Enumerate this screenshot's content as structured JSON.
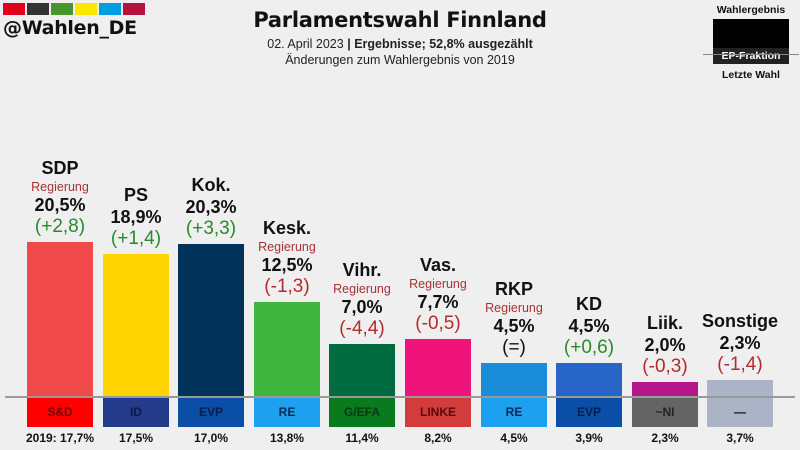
{
  "brand": {
    "handle": "@Wahlen_DE",
    "swatch_colors": [
      "#e2001a",
      "#333333",
      "#46962b",
      "#ffe600",
      "#009ee0",
      "#b5123e"
    ]
  },
  "header": {
    "title": "Parlamentswahl Finnland",
    "date": "02. April 2023",
    "separator": "|",
    "status": "Ergebnisse; 52,8% ausgezählt",
    "subtitle": "Änderungen zum Wahlergebnis von 2019"
  },
  "legend": {
    "top": "Wahlergebnis",
    "middle": "EP-Fraktion",
    "bottom": "Letzte Wahl"
  },
  "chart_data": {
    "type": "bar",
    "title": "Parlamentswahl Finnland",
    "xlabel": "",
    "ylabel": "",
    "ylim": [
      0,
      22
    ],
    "unit": "%",
    "government_label": "Regierung",
    "previous_prefix": "2019: ",
    "categories": [
      "SDP",
      "PS",
      "Kok.",
      "Kesk.",
      "Vihr.",
      "Vas.",
      "RKP",
      "KD",
      "Liik.",
      "Sonstige"
    ],
    "values": [
      20.5,
      18.9,
      20.3,
      12.5,
      7.0,
      7.7,
      4.5,
      4.5,
      2.0,
      2.3
    ],
    "value_labels": [
      "20,5%",
      "18,9%",
      "20,3%",
      "12,5%",
      "7,0%",
      "7,7%",
      "4,5%",
      "4,5%",
      "2,0%",
      "2,3%"
    ],
    "changes": [
      2.8,
      1.4,
      3.3,
      -1.3,
      -4.4,
      -0.5,
      0.0,
      0.6,
      -0.3,
      -1.4
    ],
    "change_labels": [
      "(+2,8)",
      "(+1,4)",
      "(+3,3)",
      "(-1,3)",
      "(-4,4)",
      "(-0,5)",
      "(=)",
      "(+0,6)",
      "(-0,3)",
      "(-1,4)"
    ],
    "government": [
      true,
      false,
      false,
      true,
      true,
      true,
      true,
      false,
      false,
      false
    ],
    "bar_colors": [
      "#f04a4a",
      "#ffd400",
      "#00325a",
      "#3fb53f",
      "#006b3f",
      "#f0147a",
      "#1a8cd8",
      "#2766c8",
      "#b5178a",
      "#aab4c6"
    ],
    "ep_groups": [
      "S&D",
      "ID",
      "EVP",
      "RE",
      "G/EFA",
      "LINKE",
      "RE",
      "EVP",
      "~NI",
      "—"
    ],
    "ep_colors": [
      "#ff0000",
      "#243a8a",
      "#0a4ea8",
      "#1ea0f0",
      "#0a7a1e",
      "#d23c3c",
      "#1ea0f0",
      "#0a4ea8",
      "#646464",
      "#aab4c6"
    ],
    "ep_text_colors": [
      "#6b0000",
      "#0a1a4a",
      "#061c4a",
      "#0a2a55",
      "#063a10",
      "#5a0a0a",
      "#0a2a55",
      "#061c4a",
      "#222222",
      "#111111"
    ],
    "previous_values": [
      17.7,
      17.5,
      17.0,
      13.8,
      11.4,
      8.2,
      4.5,
      3.9,
      2.3,
      3.7
    ],
    "previous_labels": [
      "17,7%",
      "17,5%",
      "17,0%",
      "13,8%",
      "11,4%",
      "8,2%",
      "4,5%",
      "3,9%",
      "2,3%",
      "3,7%"
    ],
    "positive_color": "#2a8a2a",
    "negative_color": "#b52a2a",
    "neutral_color": "#111111",
    "government_color": "#a83232"
  }
}
